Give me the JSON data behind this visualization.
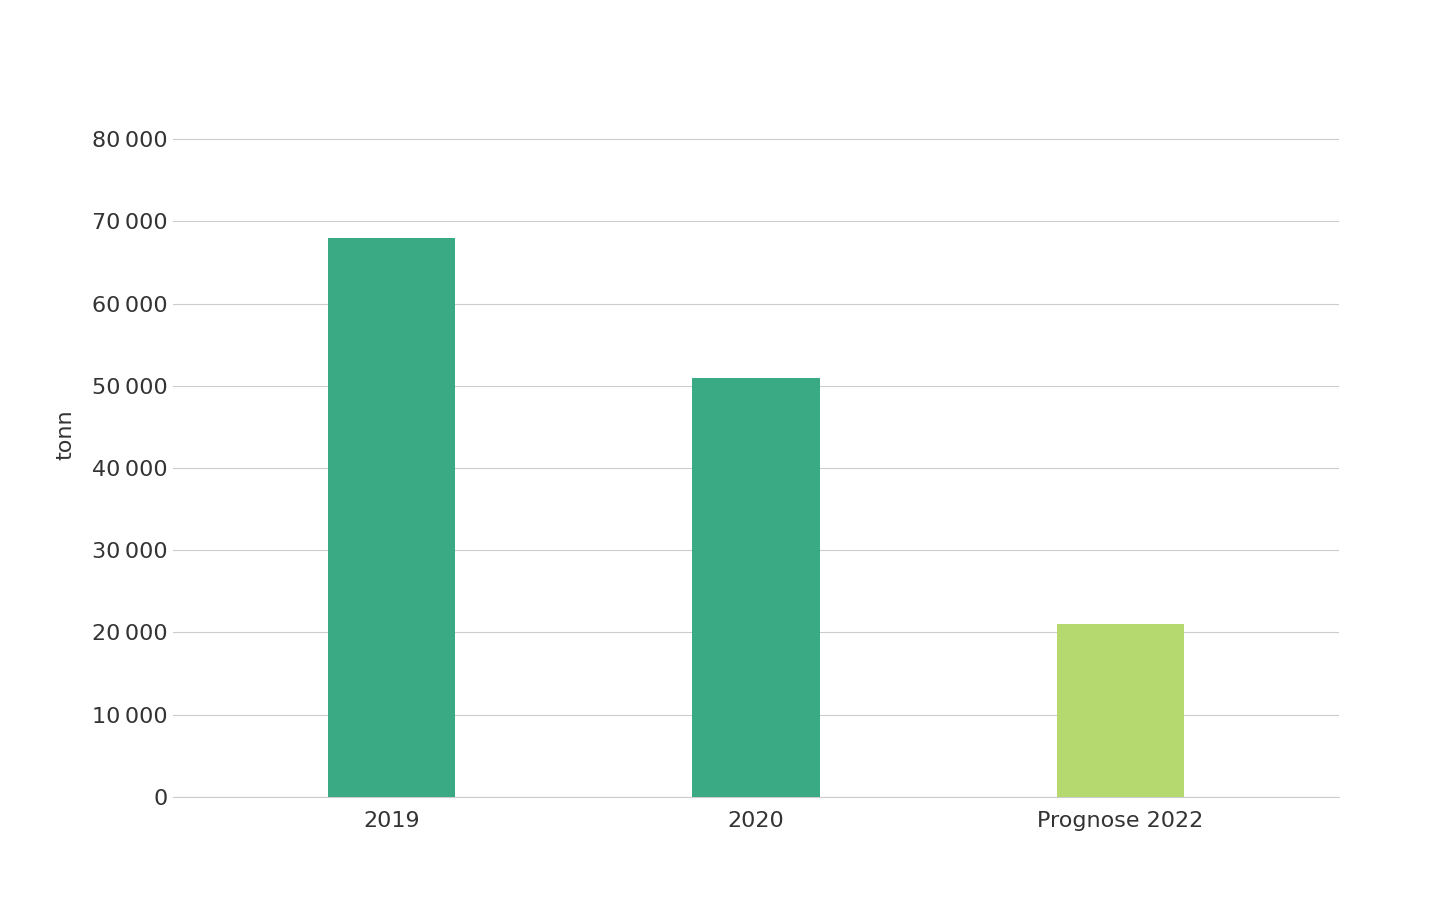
{
  "categories": [
    "2019",
    "2020",
    "Prognose 2022"
  ],
  "values": [
    68000,
    51000,
    21000
  ],
  "bar_colors": [
    "#3aaa85",
    "#3aaa85",
    "#b5d96e"
  ],
  "ylabel": "tonn",
  "ylim": [
    0,
    88000
  ],
  "yticks": [
    0,
    10000,
    20000,
    30000,
    40000,
    50000,
    60000,
    70000,
    80000
  ],
  "background_color": "#ffffff",
  "grid_color": "#cccccc",
  "tick_label_fontsize": 16,
  "ylabel_fontsize": 16,
  "bar_width": 0.35
}
